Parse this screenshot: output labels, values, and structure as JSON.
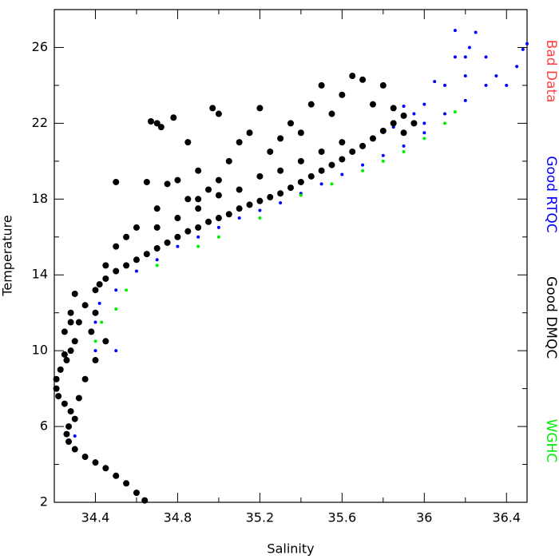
{
  "chart_data": {
    "type": "scatter",
    "x_label": "Salinity",
    "y_label": "Temperature",
    "xlim": [
      34.2,
      36.5
    ],
    "ylim": [
      2,
      28
    ],
    "xticks": [
      34.4,
      34.8,
      35.2,
      35.6,
      36.0,
      36.4
    ],
    "xticks_minor": [
      34.2,
      34.6,
      35.0,
      35.4,
      35.8,
      36.2
    ],
    "yticks": [
      2,
      6,
      10,
      14,
      18,
      22,
      26
    ],
    "yticks_minor": [
      4,
      8,
      12,
      16,
      20,
      24,
      28
    ],
    "legend": "right",
    "series": [
      {
        "name": "Bad Data",
        "color": "#ff4040",
        "x": [],
        "y": []
      },
      {
        "name": "Good RTQC",
        "color": "#0000ff",
        "x": [
          34.3,
          34.35,
          34.4,
          34.45,
          34.5,
          34.4,
          34.42,
          34.5,
          34.6,
          34.7,
          34.8,
          34.9,
          35.0,
          35.1,
          35.2,
          35.3,
          35.4,
          35.5,
          35.6,
          35.7,
          35.8,
          35.9,
          36.0,
          36.1,
          36.2,
          35.95,
          35.85,
          36.0,
          36.1,
          36.2,
          36.15,
          36.25,
          36.3,
          36.35,
          36.4,
          36.45,
          36.5,
          36.48,
          36.3,
          36.2,
          36.05,
          36.0,
          35.9,
          36.15,
          36.22
        ],
        "y": [
          5.5,
          8.5,
          10.0,
          10.5,
          10.0,
          11.5,
          12.5,
          13.2,
          14.2,
          14.8,
          15.5,
          16.0,
          16.5,
          17.0,
          17.4,
          17.8,
          18.3,
          18.8,
          19.3,
          19.8,
          20.3,
          20.8,
          21.5,
          22.5,
          23.2,
          22.5,
          21.8,
          23.0,
          24.0,
          25.5,
          26.9,
          26.8,
          25.5,
          24.5,
          24.0,
          25.0,
          26.2,
          25.9,
          24.0,
          24.5,
          24.2,
          22.0,
          22.9,
          25.5,
          26.0
        ]
      },
      {
        "name": "Good DMQC",
        "color": "#000000",
        "x": [
          34.64,
          34.6,
          34.55,
          34.5,
          34.45,
          34.4,
          34.35,
          34.3,
          34.27,
          34.26,
          34.27,
          34.3,
          34.28,
          34.25,
          34.22,
          34.21,
          34.21,
          34.23,
          34.26,
          34.28,
          34.3,
          34.25,
          34.32,
          34.28,
          34.35,
          34.3,
          34.4,
          34.45,
          34.5,
          34.55,
          34.6,
          34.65,
          34.7,
          34.75,
          34.8,
          34.85,
          34.9,
          34.95,
          35.0,
          35.05,
          35.1,
          35.15,
          35.2,
          35.25,
          35.3,
          35.35,
          35.4,
          35.45,
          35.5,
          35.55,
          35.6,
          35.65,
          35.7,
          35.75,
          35.8,
          35.85,
          35.9,
          34.6,
          34.7,
          34.75,
          34.65,
          34.8,
          34.85,
          34.9,
          34.95,
          35.0,
          35.05,
          35.1,
          35.15,
          35.2,
          35.25,
          35.3,
          35.35,
          35.4,
          35.45,
          35.5,
          35.55,
          35.6,
          35.65,
          35.7,
          35.75,
          35.8,
          35.85,
          35.9,
          35.95,
          34.7,
          34.72,
          34.78,
          34.67,
          34.97,
          35.0,
          34.85,
          34.9,
          34.55,
          34.5,
          34.45,
          34.4,
          34.38,
          34.45,
          34.4,
          34.35,
          34.32,
          34.25,
          34.28,
          34.42,
          34.5,
          35.6,
          35.5,
          35.4,
          35.3,
          35.2,
          35.1,
          35.0,
          34.9,
          34.8,
          34.7
        ],
        "y": [
          2.1,
          2.5,
          3.0,
          3.4,
          3.8,
          4.1,
          4.4,
          4.8,
          5.2,
          5.6,
          6.0,
          6.4,
          6.8,
          7.2,
          7.6,
          8.0,
          8.5,
          9.0,
          9.5,
          10.0,
          10.5,
          11.0,
          11.5,
          12.0,
          12.4,
          13.0,
          13.2,
          13.8,
          14.2,
          14.5,
          14.8,
          15.1,
          15.4,
          15.7,
          16.0,
          16.3,
          16.5,
          16.8,
          17.0,
          17.2,
          17.5,
          17.7,
          17.9,
          18.1,
          18.3,
          18.6,
          18.9,
          19.2,
          19.5,
          19.8,
          20.1,
          20.5,
          20.8,
          21.2,
          21.6,
          22.0,
          22.4,
          16.5,
          17.5,
          18.8,
          18.9,
          19.0,
          18.0,
          19.5,
          18.5,
          19.0,
          20.0,
          21.0,
          21.5,
          22.8,
          20.5,
          21.2,
          22.0,
          21.5,
          23.0,
          24.0,
          22.5,
          23.5,
          24.5,
          24.3,
          23.0,
          24.0,
          22.8,
          21.5,
          22.0,
          22.0,
          21.8,
          22.3,
          22.1,
          22.8,
          22.5,
          21.0,
          18.0,
          16.0,
          18.9,
          14.5,
          12.0,
          11.0,
          10.5,
          9.5,
          8.5,
          7.5,
          9.8,
          11.5,
          13.5,
          15.5,
          21.0,
          20.5,
          20.0,
          19.5,
          19.2,
          18.5,
          18.2,
          17.5,
          17.0,
          16.5
        ]
      },
      {
        "name": "WGHC",
        "color": "#00ee00",
        "x": [
          34.4,
          34.43,
          34.5,
          34.55,
          34.7,
          34.9,
          35.0,
          35.2,
          35.4,
          35.55,
          35.7,
          35.8,
          35.9,
          36.0,
          36.1,
          36.15
        ],
        "y": [
          10.5,
          11.5,
          12.2,
          13.2,
          14.5,
          15.5,
          16.0,
          17.0,
          18.2,
          18.8,
          19.5,
          20.0,
          20.5,
          21.2,
          22.0,
          22.6
        ]
      }
    ]
  }
}
